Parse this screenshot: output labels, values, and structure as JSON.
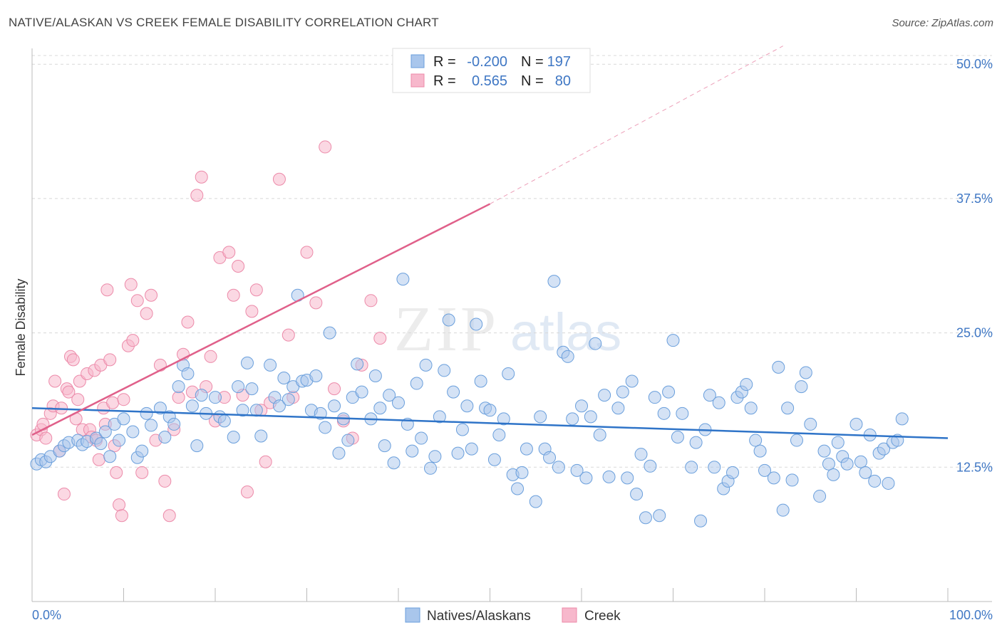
{
  "title": "NATIVE/ALASKAN VS CREEK FEMALE DISABILITY CORRELATION CHART",
  "source": "Source: ZipAtlas.com",
  "watermark": "ZIPatlas",
  "colors": {
    "blue_fill": "#a9c6ec",
    "blue_stroke": "#6a9fdc",
    "blue_line": "#2f74c8",
    "pink_fill": "#f7b8cc",
    "pink_stroke": "#ec8aa9",
    "pink_line": "#e0608a",
    "grid": "#d8d8d8",
    "tick_text": "#3f77c4"
  },
  "legend": {
    "r_label": "R =",
    "n_label": "N =",
    "rows": [
      {
        "series": "Natives/Alaskans",
        "r": "-0.200",
        "n": "197"
      },
      {
        "series": "Creek",
        "r": "0.565",
        "n": "80"
      }
    ]
  },
  "chart_data": {
    "type": "scatter",
    "title": "NATIVE/ALASKAN VS CREEK FEMALE DISABILITY CORRELATION CHART",
    "xlabel": "",
    "ylabel": "Female Disability",
    "xlim": [
      0,
      100
    ],
    "ylim": [
      0,
      52
    ],
    "x_tick_labels": [
      "0.0%",
      "100.0%"
    ],
    "y_ticks": [
      12.5,
      25.0,
      37.5,
      50.0
    ],
    "y_tick_labels": [
      "12.5%",
      "25.0%",
      "37.5%",
      "50.0%"
    ],
    "grid": "horizontal dashed",
    "legend_position": "top-center",
    "series": [
      {
        "name": "Natives/Alaskans",
        "color": "#6a9fdc",
        "trend": {
          "x0": 0,
          "y0": 18.0,
          "x1": 100,
          "y1": 15.2
        },
        "points": [
          [
            0.5,
            12.8
          ],
          [
            1,
            13.2
          ],
          [
            1.5,
            13.0
          ],
          [
            2,
            13.5
          ],
          [
            3,
            14.0
          ],
          [
            3.5,
            14.5
          ],
          [
            4,
            14.8
          ],
          [
            5,
            15.0
          ],
          [
            5.5,
            14.6
          ],
          [
            6,
            14.9
          ],
          [
            7,
            15.2
          ],
          [
            7.5,
            14.7
          ],
          [
            8,
            15.8
          ],
          [
            8.5,
            13.5
          ],
          [
            9,
            16.5
          ],
          [
            9.5,
            15.0
          ],
          [
            10,
            17.0
          ],
          [
            11,
            15.8
          ],
          [
            11.5,
            13.4
          ],
          [
            12,
            14.0
          ],
          [
            12.5,
            17.5
          ],
          [
            13,
            16.4
          ],
          [
            14,
            18.0
          ],
          [
            14.5,
            15.3
          ],
          [
            15,
            17.2
          ],
          [
            15.5,
            16.5
          ],
          [
            16,
            20.0
          ],
          [
            16.5,
            22.0
          ],
          [
            17,
            21.2
          ],
          [
            17.5,
            18.2
          ],
          [
            18,
            14.5
          ],
          [
            18.5,
            19.2
          ],
          [
            19,
            17.5
          ],
          [
            20,
            19.0
          ],
          [
            20.5,
            17.2
          ],
          [
            21,
            16.8
          ],
          [
            22,
            15.3
          ],
          [
            22.5,
            20.0
          ],
          [
            23,
            17.8
          ],
          [
            23.5,
            22.2
          ],
          [
            24,
            19.8
          ],
          [
            24.5,
            17.8
          ],
          [
            25,
            15.4
          ],
          [
            26,
            22.0
          ],
          [
            26.5,
            19.0
          ],
          [
            27,
            18.2
          ],
          [
            27.5,
            20.8
          ],
          [
            28,
            18.8
          ],
          [
            28.5,
            20.0
          ],
          [
            29,
            28.5
          ],
          [
            29.5,
            20.5
          ],
          [
            30,
            20.6
          ],
          [
            30.5,
            17.8
          ],
          [
            31,
            21.0
          ],
          [
            31.5,
            17.5
          ],
          [
            32,
            16.2
          ],
          [
            32.5,
            25.0
          ],
          [
            33,
            18.2
          ],
          [
            33.5,
            13.8
          ],
          [
            34,
            17.0
          ],
          [
            34.5,
            15.0
          ],
          [
            35,
            19.0
          ],
          [
            35.5,
            22.1
          ],
          [
            36,
            19.5
          ],
          [
            37,
            17.0
          ],
          [
            37.5,
            21.0
          ],
          [
            38,
            18.0
          ],
          [
            38.5,
            14.5
          ],
          [
            39,
            19.2
          ],
          [
            39.5,
            12.9
          ],
          [
            40,
            18.5
          ],
          [
            40.5,
            30.0
          ],
          [
            41,
            16.5
          ],
          [
            41.5,
            14.0
          ],
          [
            42,
            20.3
          ],
          [
            42.5,
            15.2
          ],
          [
            43,
            22.0
          ],
          [
            43.5,
            12.4
          ],
          [
            44,
            13.5
          ],
          [
            44.5,
            17.2
          ],
          [
            45,
            21.5
          ],
          [
            45.5,
            26.2
          ],
          [
            46,
            19.5
          ],
          [
            46.5,
            13.8
          ],
          [
            47,
            16.0
          ],
          [
            47.5,
            18.2
          ],
          [
            48,
            14.2
          ],
          [
            48.5,
            25.8
          ],
          [
            49,
            20.5
          ],
          [
            49.5,
            18.0
          ],
          [
            50,
            17.8
          ],
          [
            50.5,
            13.2
          ],
          [
            51,
            15.5
          ],
          [
            51.5,
            17.0
          ],
          [
            52,
            21.2
          ],
          [
            52.5,
            11.8
          ],
          [
            53,
            10.5
          ],
          [
            53.5,
            12.0
          ],
          [
            54,
            14.2
          ],
          [
            55,
            9.3
          ],
          [
            55.5,
            17.2
          ],
          [
            56,
            14.2
          ],
          [
            56.5,
            13.4
          ],
          [
            57,
            29.8
          ],
          [
            57.5,
            12.5
          ],
          [
            58,
            23.2
          ],
          [
            58.5,
            22.8
          ],
          [
            59,
            17.0
          ],
          [
            59.5,
            12.2
          ],
          [
            60,
            18.2
          ],
          [
            60.5,
            11.5
          ],
          [
            61,
            17.2
          ],
          [
            61.5,
            24.0
          ],
          [
            62,
            15.5
          ],
          [
            62.5,
            19.2
          ],
          [
            63,
            11.6
          ],
          [
            64,
            18.0
          ],
          [
            64.5,
            19.5
          ],
          [
            65,
            11.5
          ],
          [
            65.5,
            20.5
          ],
          [
            66,
            10.0
          ],
          [
            66.5,
            13.7
          ],
          [
            67,
            7.8
          ],
          [
            67.5,
            12.6
          ],
          [
            68,
            19.0
          ],
          [
            68.5,
            8.0
          ],
          [
            69,
            17.5
          ],
          [
            69.5,
            19.5
          ],
          [
            70,
            24.3
          ],
          [
            70.5,
            15.3
          ],
          [
            71,
            17.5
          ],
          [
            72,
            12.5
          ],
          [
            72.5,
            14.8
          ],
          [
            73,
            7.5
          ],
          [
            73.5,
            16.0
          ],
          [
            74,
            19.2
          ],
          [
            74.5,
            12.5
          ],
          [
            75,
            18.5
          ],
          [
            75.5,
            10.5
          ],
          [
            76,
            11.2
          ],
          [
            76.5,
            12.0
          ],
          [
            77,
            19.0
          ],
          [
            77.5,
            19.5
          ],
          [
            78,
            20.2
          ],
          [
            78.5,
            18.0
          ],
          [
            79,
            15.0
          ],
          [
            79.5,
            14.0
          ],
          [
            80,
            12.2
          ],
          [
            81,
            11.5
          ],
          [
            81.5,
            21.8
          ],
          [
            82,
            8.5
          ],
          [
            82.5,
            18.0
          ],
          [
            83,
            11.3
          ],
          [
            83.5,
            15.0
          ],
          [
            84,
            20.0
          ],
          [
            84.5,
            21.3
          ],
          [
            85,
            16.5
          ],
          [
            86,
            9.8
          ],
          [
            86.5,
            14.0
          ],
          [
            87,
            12.8
          ],
          [
            87.5,
            11.8
          ],
          [
            88,
            14.8
          ],
          [
            88.5,
            13.5
          ],
          [
            89,
            12.8
          ],
          [
            90,
            16.5
          ],
          [
            90.5,
            13.0
          ],
          [
            91,
            12.0
          ],
          [
            91.5,
            15.5
          ],
          [
            92,
            11.2
          ],
          [
            92.5,
            13.8
          ],
          [
            93,
            14.2
          ],
          [
            93.5,
            11.0
          ],
          [
            94,
            14.8
          ],
          [
            94.5,
            15.0
          ],
          [
            95,
            17.0
          ]
        ]
      },
      {
        "name": "Creek",
        "color": "#ec8aa9",
        "trend": {
          "x0": 0,
          "y0": 15.5,
          "x1": 50,
          "y1": 37.0
        },
        "trend_dashed": {
          "x0": 50,
          "y0": 37.0,
          "x1": 82,
          "y1": 51.7
        },
        "points": [
          [
            0.5,
            15.5
          ],
          [
            1,
            16.0
          ],
          [
            1.2,
            16.5
          ],
          [
            1.5,
            15.2
          ],
          [
            2,
            17.5
          ],
          [
            2.3,
            18.2
          ],
          [
            2.5,
            20.5
          ],
          [
            3,
            14.0
          ],
          [
            3.2,
            18.0
          ],
          [
            3.5,
            10.0
          ],
          [
            3.8,
            19.8
          ],
          [
            4,
            19.5
          ],
          [
            4.2,
            22.8
          ],
          [
            4.5,
            22.5
          ],
          [
            4.8,
            17.0
          ],
          [
            5,
            18.8
          ],
          [
            5.2,
            20.5
          ],
          [
            5.5,
            16.0
          ],
          [
            6,
            21.2
          ],
          [
            6.3,
            16.0
          ],
          [
            6.5,
            15.3
          ],
          [
            6.8,
            21.5
          ],
          [
            7,
            15.0
          ],
          [
            7.3,
            13.2
          ],
          [
            7.5,
            22.0
          ],
          [
            7.8,
            18.0
          ],
          [
            8,
            16.5
          ],
          [
            8.2,
            29.0
          ],
          [
            8.5,
            22.5
          ],
          [
            8.8,
            18.5
          ],
          [
            9,
            14.5
          ],
          [
            9.2,
            12.0
          ],
          [
            9.5,
            9.0
          ],
          [
            9.8,
            8.0
          ],
          [
            10,
            18.8
          ],
          [
            10.5,
            23.8
          ],
          [
            10.8,
            29.5
          ],
          [
            11,
            24.3
          ],
          [
            11.5,
            28.0
          ],
          [
            12,
            12.0
          ],
          [
            12.5,
            26.8
          ],
          [
            13,
            28.5
          ],
          [
            13.5,
            15.0
          ],
          [
            14,
            22.0
          ],
          [
            14.5,
            11.2
          ],
          [
            15,
            8.0
          ],
          [
            15.5,
            16.0
          ],
          [
            16,
            19.0
          ],
          [
            16.5,
            23.0
          ],
          [
            17,
            26.0
          ],
          [
            17.5,
            19.5
          ],
          [
            18,
            37.8
          ],
          [
            18.5,
            39.5
          ],
          [
            19,
            20.0
          ],
          [
            19.5,
            22.8
          ],
          [
            20,
            16.8
          ],
          [
            20.5,
            32.0
          ],
          [
            21,
            19.0
          ],
          [
            21.5,
            32.5
          ],
          [
            22,
            28.5
          ],
          [
            22.5,
            31.2
          ],
          [
            23,
            19.2
          ],
          [
            23.5,
            10.2
          ],
          [
            24,
            27.0
          ],
          [
            24.5,
            29.0
          ],
          [
            25,
            17.8
          ],
          [
            25.5,
            13.0
          ],
          [
            26,
            18.5
          ],
          [
            27,
            39.3
          ],
          [
            28,
            24.8
          ],
          [
            28.5,
            19.0
          ],
          [
            30,
            32.5
          ],
          [
            31,
            27.8
          ],
          [
            32,
            42.3
          ],
          [
            33,
            19.8
          ],
          [
            34,
            16.8
          ],
          [
            35,
            15.2
          ],
          [
            36,
            22.0
          ],
          [
            37,
            28.0
          ],
          [
            38,
            24.5
          ]
        ]
      }
    ]
  }
}
